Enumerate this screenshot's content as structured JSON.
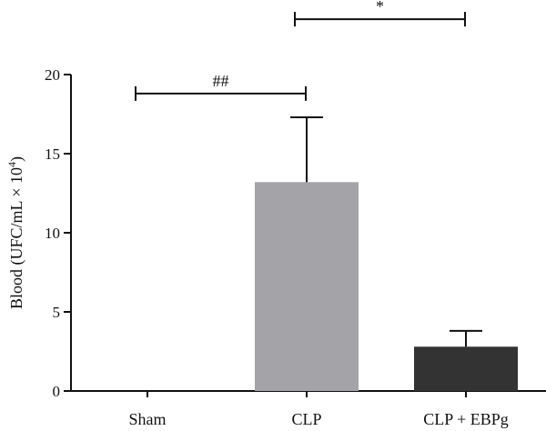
{
  "chart_data": {
    "type": "bar",
    "title": "",
    "xlabel": "",
    "ylabel": "Blood (UFC/mL × 10",
    "ylabel_superscript": "4",
    "ylabel_close": ")",
    "ylim": [
      0,
      20
    ],
    "yticks": [
      0,
      5,
      10,
      15,
      20
    ],
    "ytick_labels": [
      "0",
      "5",
      "10",
      "15",
      "20"
    ],
    "categories": [
      "Sham",
      "CLP",
      "CLP + EBPg"
    ],
    "values": [
      0,
      13.2,
      2.8
    ],
    "errors": [
      0,
      4.1,
      1.0
    ],
    "colors": [
      "#ffffff",
      "#a3a3a8",
      "#333333"
    ],
    "significance": [
      {
        "from": 0,
        "to": 1,
        "label": "##",
        "y": 18.8
      },
      {
        "from": 1,
        "to": 2,
        "label": "*",
        "y": 23.5
      }
    ],
    "grid": false,
    "legend": "none"
  }
}
